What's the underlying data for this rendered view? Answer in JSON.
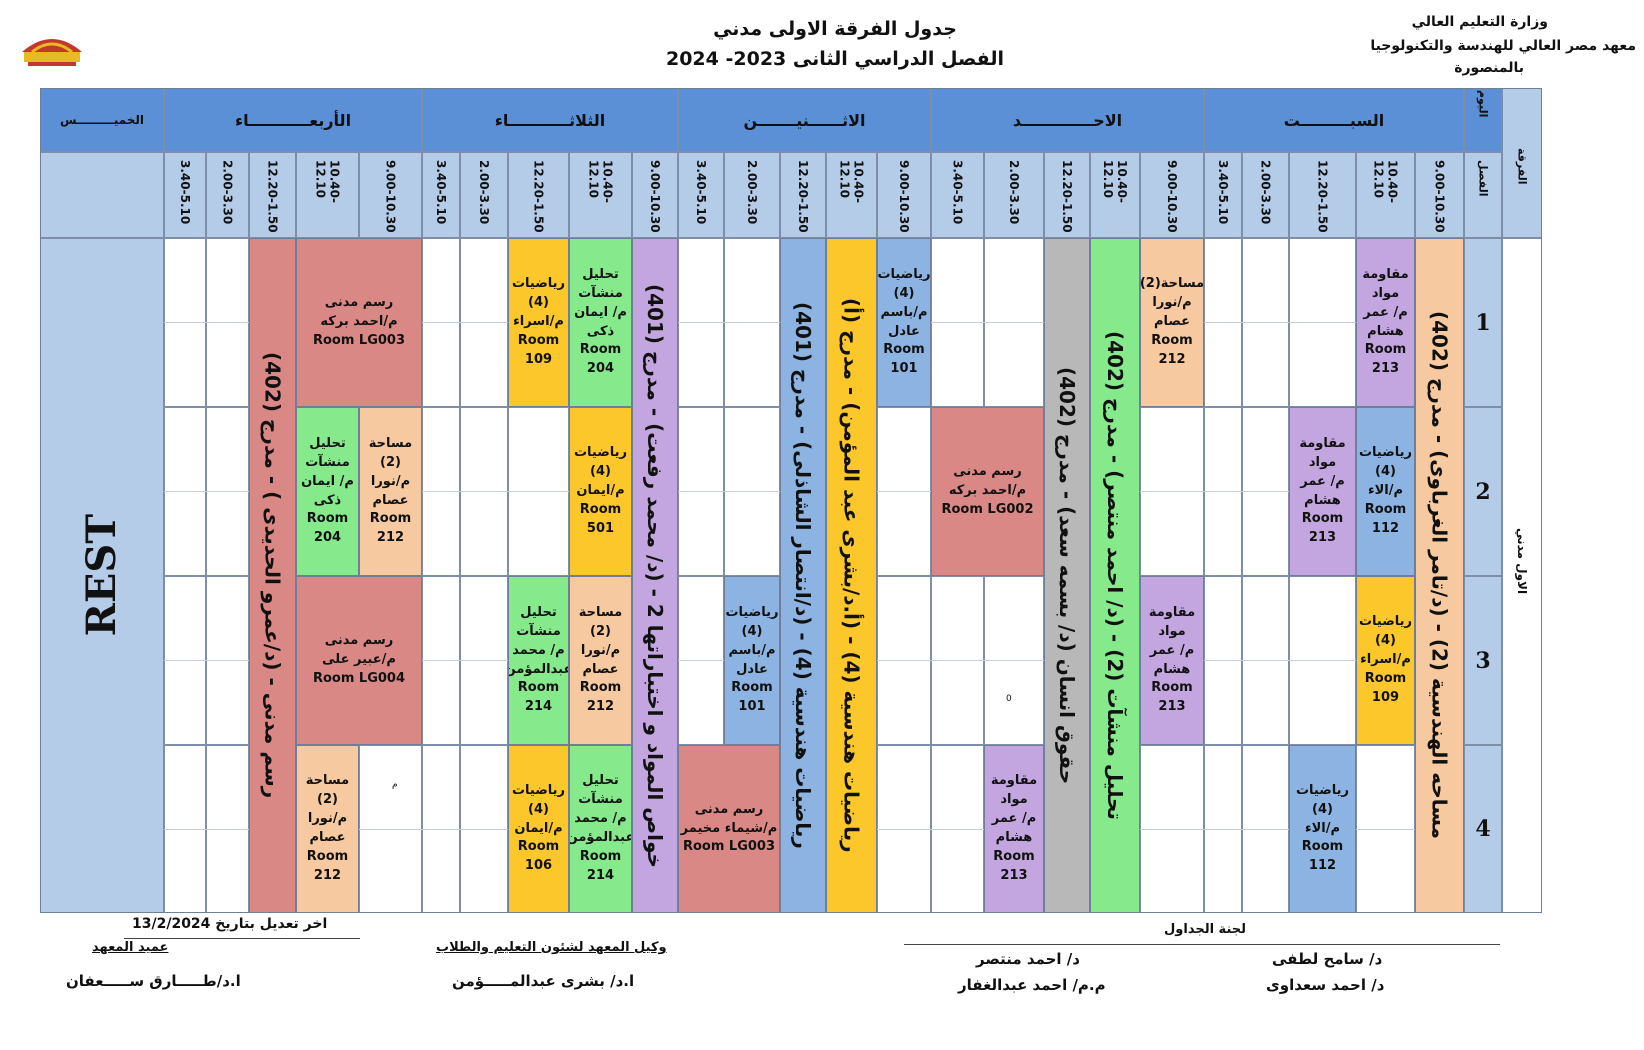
{
  "header": {
    "ministry": "وزارة التعليم العالي",
    "institute": "معهد مصر العالي للهندسة والتكنولوجيا",
    "city": "بالمنصورة",
    "title": "جدول الفرقة الاولى مدني",
    "subtitle": "الفصل الدراسي الثانى  2023- 2024",
    "logo_text": "مصر"
  },
  "corner": {
    "day": "اليوم",
    "group": "الفرقة",
    "section": "الفصل"
  },
  "level_label": "الاول مدني",
  "days": [
    {
      "name": "السبـــــــــت",
      "slots": [
        "9.00-10.30",
        "10.40-12.10",
        "12.20-1.50",
        "2.00-3.30",
        "3.40-5.10"
      ]
    },
    {
      "name": "الاحـــــــــــــد",
      "slots": [
        "9.00-10.30",
        "10.40-12.10",
        "12.20-1.50",
        "2.00-3.30",
        "3.40-5.10"
      ]
    },
    {
      "name": "الاثــــــنيـــــــن",
      "slots": [
        "9.00-10.30",
        "10.40-12.10",
        "12.20-1.50",
        "2.00-3.30",
        "3.40-5.10"
      ]
    },
    {
      "name": "الثلاثـــــــــــاء",
      "slots": [
        "9.00-10.30",
        "10.40-12.10",
        "12.20-1.50",
        "2.00-3.30",
        "3.40-5.10"
      ]
    },
    {
      "name": "الأربعـــــــــــاء",
      "slots": [
        "9.00-10.30",
        "10.40-12.10",
        "12.20-1.50",
        "2.00-3.30",
        "3.40-5.10"
      ]
    },
    {
      "name": "الخميـــــــــس",
      "slots": []
    }
  ],
  "sections": [
    "1",
    "2",
    "3",
    "4"
  ],
  "rest_label": "REST",
  "colors": {
    "header_blue": "#5b8fd6",
    "slot_blue": "#b5cce8",
    "peach": "#f7c9a0",
    "lavender": "#c3a6e0",
    "blue": "#8db3e2",
    "green": "#86ea8d",
    "yellow": "#fbc72a",
    "rose": "#d98885",
    "grey": "#b8b8b8"
  },
  "blocks": [
    {
      "text": "مساحه الهندسية (2) - (د/تامر الغرباوى)  -  مدرج (402)",
      "color": "peach",
      "vertical": true
    },
    {
      "text": "مقاومة\nمواد\nم/ عمر\nهشام\nRoom\n213",
      "color": "lavender"
    },
    {
      "text": "رياضيات\n(4)\nم/الاء\nRoom\n112",
      "color": "blue"
    },
    {
      "text": "رياضيات\n(4)\nم/اسراء\nRoom\n109",
      "color": "yellow"
    },
    {
      "text": "مقاومة\nمواد\nم/ عمر\nهشام\nRoom\n213",
      "color": "lavender"
    },
    {
      "text": "رياضيات\n(4)\nم/الاء\nRoom\n112",
      "color": "blue"
    },
    {
      "text": "مساحة(2)\nم/نورا\nعصام\nRoom\n212",
      "color": "peach"
    },
    {
      "text": "مقاومة\nمواد\nم/ عمر\nهشام\nRoom\n213",
      "color": "lavender"
    },
    {
      "text": "تحليل منشآت (2)  -  (د/ احمد منتصر)  -  مدرج (402)",
      "color": "green",
      "vertical": true
    },
    {
      "text": "حقوق انسان   (د/ بسمه سعد)  -  مدرج (402)",
      "color": "grey",
      "vertical": true
    },
    {
      "text": "رسم مدنى\nم/احمد بركه\nRoom LG002",
      "color": "rose"
    },
    {
      "text": "مقاومة\nمواد\nم/ عمر\nهشام\nRoom\n213",
      "color": "lavender"
    },
    {
      "text": "رياضيات\n(4)\nم/باسم\nعادل\nRoom\n101",
      "color": "blue"
    },
    {
      "text": "رياضيات هندسية (4)  -  (أ.د/بشرى عبد المؤمن)  -  مدرج (أ)",
      "color": "yellow",
      "vertical": true
    },
    {
      "text": "رياضيات هندسية (4)  -  (د/انتصار الشاذلى)  -  مدرج (401)",
      "color": "blue",
      "vertical": true
    },
    {
      "text": "رياضيات\n(4)\nم/باسم\nعادل\nRoom\n101",
      "color": "blue"
    },
    {
      "text": "رسم مدنى\nم/شيماء مخيمر\nRoom LG003",
      "color": "rose"
    },
    {
      "text": "خواص المواد و اختباراتها 2  -  (د/ محمد رفعت)  -  مدرج (401)",
      "color": "lavender",
      "vertical": true
    },
    {
      "text": "تحليل\nمنشآت\nم/ ايمان\nذكى\nRoom\n204",
      "color": "green"
    },
    {
      "text": "رياضيات\n(4)\nم/ايمان\nRoom\n501",
      "color": "yellow"
    },
    {
      "text": "مساحة\n(2)\nم/نورا\nعصام\nRoom\n212",
      "color": "peach"
    },
    {
      "text": "تحليل\nمنشآت\nم/ محمد\nعبدالمؤمن\nRoom\n214",
      "color": "green"
    },
    {
      "text": "رياضيات\n(4)\nم/اسراء\nRoom\n109",
      "color": "yellow"
    },
    {
      "text": "تحليل\nمنشآت\nم/ محمد\nعبدالمؤمن\nRoom\n214",
      "color": "green"
    },
    {
      "text": "رياضيات\n(4)\nم/ايمان\nRoom\n106",
      "color": "yellow"
    },
    {
      "text": "رسم مدنى\nم/احمد بركه\nRoom LG003",
      "color": "rose"
    },
    {
      "text": "مساحة\n(2)\nم/نورا\nعصام\nRoom\n212",
      "color": "peach"
    },
    {
      "text": "تحليل\nمنشآت\nم/ ايمان\nذكى\nRoom\n204",
      "color": "green"
    },
    {
      "text": "رسم مدنى\nم/عبير على\nRoom LG004",
      "color": "rose"
    },
    {
      "text": "مساحة\n(2)\nم/نورا\nعصام\nRoom\n212",
      "color": "peach"
    },
    {
      "text": "رسم مدنى  -  (د/عمرو الحديدى )  -  مدرج (402)",
      "color": "rose",
      "vertical": true
    }
  ],
  "stray_marks": [
    "0",
    "م"
  ],
  "footer": {
    "last_update": "اخر تعديل بتاريخ 13/2/2024",
    "dean_title": "عميد المعهد",
    "dean_name": "ا.د/طـــــارق ســـــعفان",
    "vice_title": "وكيل المعهد لشئون التعليم والطلاب",
    "vice_name": "ا.د/ بشرى عبدالمـــــؤمن",
    "committee_title": "لجنة الجداول",
    "committee": [
      "د/ سامح لطفى",
      "د/ احمد منتصر",
      "د/ احمد سعداوى",
      "م.م/ احمد عبدالغفار"
    ]
  }
}
